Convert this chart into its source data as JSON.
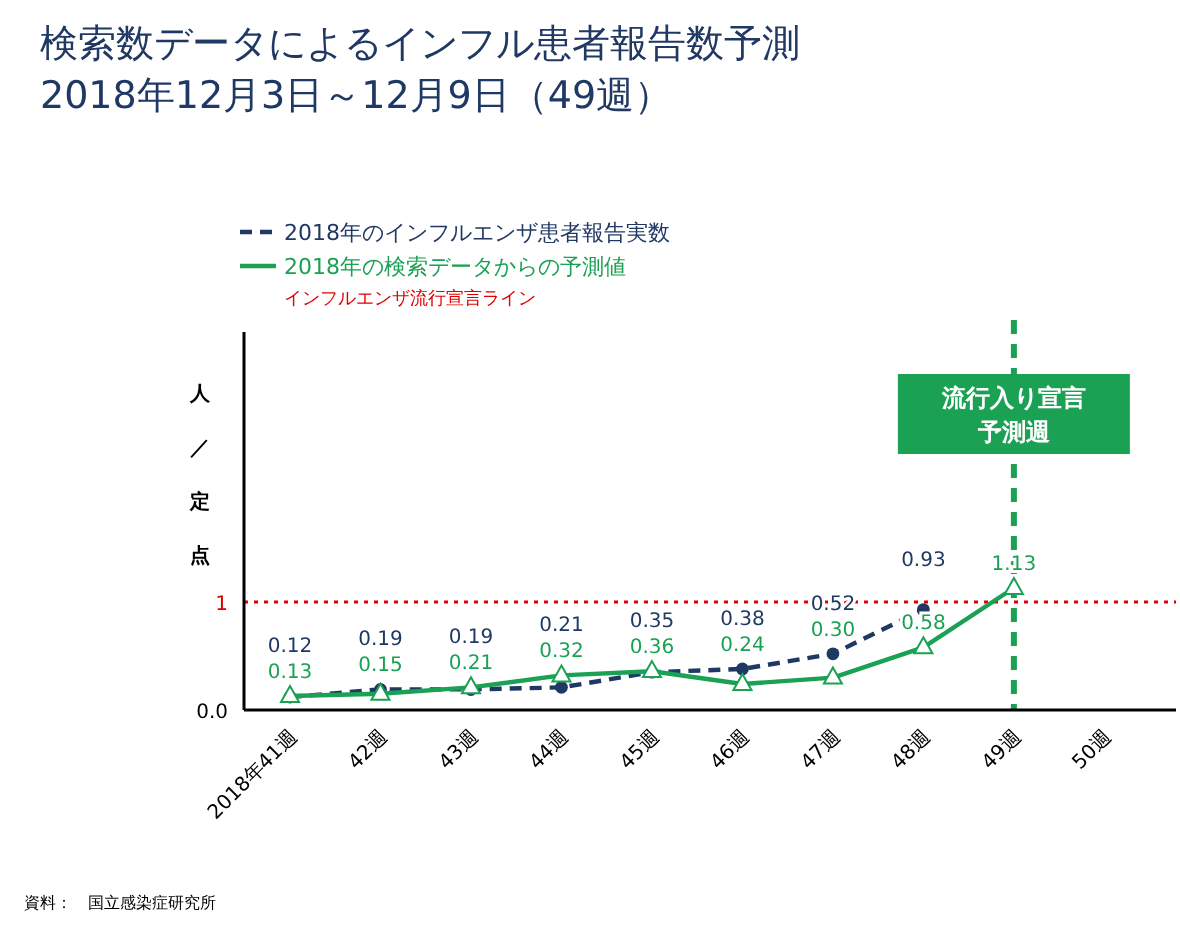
{
  "chart_data": {
    "type": "line",
    "title": "検索数データによるインフル患者報告数予測",
    "subtitle": "2018年12月3日～12月9日（49週）",
    "ylabel": "人／定点",
    "categories": [
      "2018年41週",
      "42週",
      "43週",
      "44週",
      "45週",
      "46週",
      "47週",
      "48週",
      "49週",
      "50週"
    ],
    "series": [
      {
        "name": "2018年のインフルエンザ患者報告実数",
        "color": "#1f3864",
        "line_style": "dashed",
        "marker": "circle",
        "values": [
          0.12,
          0.19,
          0.19,
          0.21,
          0.35,
          0.38,
          0.52,
          0.93,
          null,
          null
        ]
      },
      {
        "name": "2018年の検索データからの予測値",
        "color": "#1aa153",
        "line_style": "solid",
        "marker": "triangle",
        "values": [
          0.13,
          0.15,
          0.21,
          0.32,
          0.36,
          0.24,
          0.3,
          0.58,
          1.13,
          null
        ],
        "value_labels": [
          "0.13",
          "0.15",
          "0.21",
          "0.32",
          "0.36",
          "0.24",
          "0.30",
          "0.58",
          "1.13",
          null
        ]
      }
    ],
    "data_labels": true,
    "ylim": [
      0,
      3.5
    ],
    "yticks": [
      {
        "value": 0,
        "label": "0.0"
      },
      1
    ],
    "ref_lines": [
      {
        "axis": "y",
        "value": 1,
        "label": "インフルエンザ流行宣言ライン",
        "color": "#e00000",
        "line_style": "dotted"
      },
      {
        "axis": "x",
        "value": "49週",
        "label": "流行入り宣言予測週",
        "color": "#1aa153",
        "line_style": "dashed"
      }
    ],
    "legend": "top left",
    "annotations": [
      "資料：　国立感染症研究所"
    ]
  }
}
